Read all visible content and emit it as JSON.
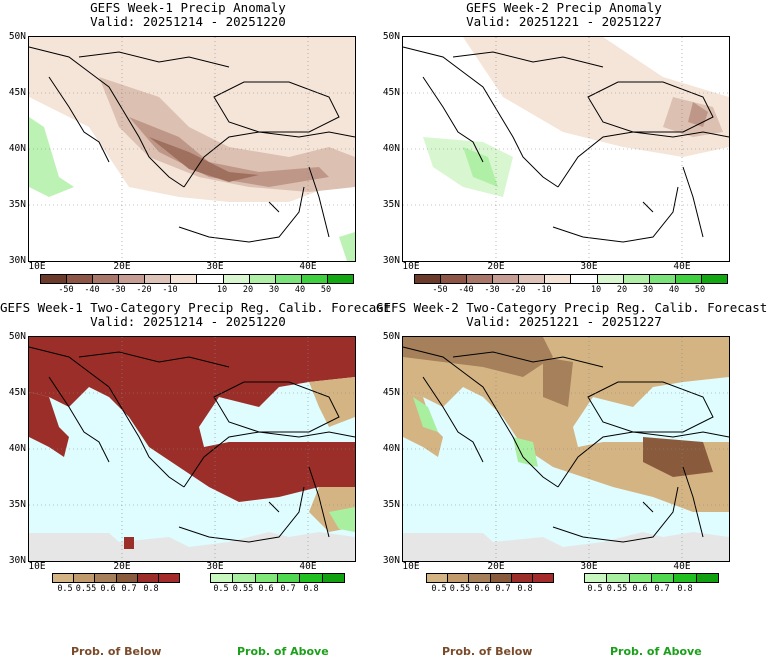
{
  "panels": [
    {
      "id": "w1-anom",
      "title1": "GEFS Week-1 Precip Anomaly",
      "title2": "Valid: 20251214 - 20251220"
    },
    {
      "id": "w2-anom",
      "title1": "GEFS Week-2 Precip Anomaly",
      "title2": "Valid: 20251221 - 20251227"
    },
    {
      "id": "w1-prob",
      "title1": "GEFS Week-1 Two-Category Precip Reg. Calib. Forecast",
      "title2": "Valid: 20251214 - 20251220"
    },
    {
      "id": "w2-prob",
      "title1": "GEFS Week-2 Two-Category Precip Reg. Calib. Forecast",
      "title2": "Valid: 20251221 - 20251227"
    }
  ],
  "lat_labels": [
    "50N",
    "45N",
    "40N",
    "35N",
    "30N"
  ],
  "lon_labels": [
    "10E",
    "20E",
    "30E",
    "40E"
  ],
  "anomaly_colorbar": {
    "labels": [
      "-50",
      "-40",
      "-30",
      "-20",
      "-10",
      "10",
      "20",
      "30",
      "40",
      "50"
    ],
    "colors": [
      "#6b3a2a",
      "#8c5545",
      "#a9766a",
      "#c59d92",
      "#dcc2b7",
      "#f3e2d6",
      "#ffffff",
      "#d8f7d0",
      "#aff0a6",
      "#7ae47a",
      "#3fd03f",
      "#11a811"
    ]
  },
  "prob_below_colorbar": {
    "labels": [
      "0.5",
      "0.55",
      "0.6",
      "0.7",
      "0.8"
    ],
    "colors": [
      "#d4b483",
      "#c19b6b",
      "#a5805b",
      "#8a5a3c",
      "#9b2e28",
      "#a52a2a"
    ]
  },
  "prob_above_colorbar": {
    "labels": [
      "0.5",
      "0.55",
      "0.6",
      "0.7",
      "0.8"
    ],
    "colors": [
      "#c8f7c0",
      "#a8f0a0",
      "#80e878",
      "#50d850",
      "#20c020",
      "#10a010"
    ]
  },
  "footer": {
    "below_left": "Prob. of Below",
    "above_left": "Prob. of Above",
    "below_right": "Prob. of Below",
    "above_right": "Prob. of Above"
  },
  "colors": {
    "sea_prob": "#dffcff",
    "no_forecast": "#e6e6e6",
    "below_text": "#7a4a2a",
    "above_text": "#1aa01a"
  }
}
